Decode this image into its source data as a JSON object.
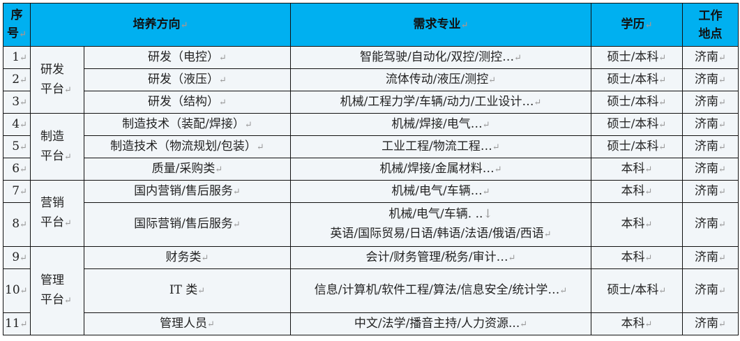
{
  "headers": {
    "no": "序号",
    "direction": "培养方向",
    "major": "需求专业",
    "degree": "学历",
    "location": "工作地点"
  },
  "platforms": [
    "研发平台",
    "制造平台",
    "营销平台",
    "管理平台"
  ],
  "rows": [
    {
      "no": "1",
      "direction": "研发（电控）",
      "major": "智能驾驶/自动化/双控/测控…",
      "degree": "硕士/本科",
      "location": "济南"
    },
    {
      "no": "2",
      "direction": "研发（液压）",
      "major": "流体传动/液压/测控",
      "degree": "硕士/本科",
      "location": "济南"
    },
    {
      "no": "3",
      "direction": "研发（结构）",
      "major": "机械/工程力学/车辆/动力/工业设计…",
      "degree": "硕士/本科",
      "location": "济南"
    },
    {
      "no": "4",
      "direction": "制造技术（装配/焊接）",
      "major": "机械/焊接/电气…",
      "degree": "硕士/本科",
      "location": "济南"
    },
    {
      "no": "5",
      "direction": "制造技术（物流规划/包装）",
      "major": "工业工程/物流工程…",
      "degree": "硕士/本科",
      "location": "济南"
    },
    {
      "no": "6",
      "direction": "质量/采购类",
      "major": "机械/焊接/金属材料…",
      "degree": "本科",
      "location": "济南"
    },
    {
      "no": "7",
      "direction": "国内营销/售后服务",
      "major": "机械/电气/车辆…",
      "degree": "本科",
      "location": "济南"
    },
    {
      "no": "8",
      "direction": "国际营销/售后服务",
      "major": "机械/电气/车辆. ..",
      "major2": "英语/国际贸易/日语/韩语/法语/俄语/西语",
      "degree": "本科",
      "location": "济南"
    },
    {
      "no": "9",
      "direction": "财务类",
      "major": "会计/财务管理/税务/审计…",
      "degree": "本科",
      "location": "济南"
    },
    {
      "no": "10",
      "direction": "IT 类",
      "major": "信息/计算机/软件工程/算法/信息安全/统计学…",
      "degree": "硕士/本科",
      "location": "济南"
    },
    {
      "no": "11",
      "direction": "管理人员",
      "major": "中文/法学/播音主持/人力资源...",
      "degree": "本科",
      "location": "济南"
    }
  ]
}
